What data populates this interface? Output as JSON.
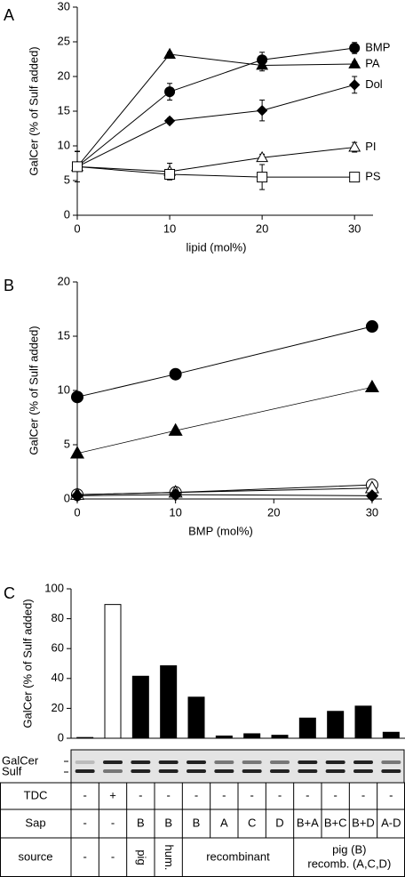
{
  "chart_data": [
    {
      "type": "line",
      "label": "A",
      "x_label": "lipid (mol%)",
      "y_label": "GalCer (% of Sulf added)",
      "x": [
        0,
        10,
        20,
        30
      ],
      "xlim": [
        0,
        32
      ],
      "xticks": [
        0,
        10,
        20,
        30
      ],
      "ylim": [
        0,
        30
      ],
      "yticks": [
        0,
        5,
        10,
        15,
        20,
        25,
        30
      ],
      "series": [
        {
          "name": "BMP",
          "marker": "circle",
          "filled": true,
          "values": [
            7,
            17.8,
            22.4,
            24.1
          ],
          "errors": [
            2.2,
            1.2,
            1.1,
            0.8
          ]
        },
        {
          "name": "PA",
          "marker": "triangle",
          "filled": true,
          "values": [
            7,
            23.2,
            21.6,
            21.8
          ],
          "errors": [
            2.2,
            0.3,
            0.8,
            0.3
          ]
        },
        {
          "name": "Dol",
          "marker": "diamond",
          "filled": true,
          "values": [
            7,
            13.6,
            15.1,
            18.8
          ],
          "errors": [
            2.2,
            0.4,
            1.5,
            1.2
          ]
        },
        {
          "name": "PI",
          "marker": "triangle",
          "filled": false,
          "values": [
            7,
            6.3,
            8.3,
            9.8
          ],
          "errors": [
            2.2,
            1.2,
            0.5,
            0.7
          ]
        },
        {
          "name": "PS",
          "marker": "square",
          "filled": false,
          "values": [
            7,
            5.9,
            5.5,
            5.5
          ],
          "errors": [
            2.2,
            0.6,
            1.8,
            0.3
          ]
        }
      ]
    },
    {
      "type": "line",
      "label": "B",
      "x_label": "BMP (mol%)",
      "y_label": "GalCer (% of Sulf added)",
      "x": [
        0,
        10,
        30
      ],
      "xlim": [
        0,
        31
      ],
      "xticks": [
        0,
        10,
        20,
        30
      ],
      "ylim": [
        0,
        20
      ],
      "yticks": [
        0,
        5,
        10,
        15,
        20
      ],
      "series": [
        {
          "marker": "circle",
          "filled": true,
          "values": [
            9.4,
            11.5,
            15.9
          ]
        },
        {
          "marker": "triangle",
          "filled": true,
          "values": [
            4.2,
            6.3,
            10.3
          ]
        },
        {
          "marker": "circle",
          "filled": false,
          "values": [
            0.4,
            0.6,
            1.3
          ]
        },
        {
          "marker": "triangle",
          "filled": false,
          "values": [
            0.4,
            0.6,
            1.0
          ]
        },
        {
          "marker": "diamond",
          "filled": true,
          "values": [
            0.3,
            0.4,
            0.3
          ]
        }
      ]
    },
    {
      "type": "bar",
      "label": "C",
      "y_label": "GalCer (% of Sulf added)",
      "ylim": [
        0,
        100
      ],
      "yticks": [
        0,
        20,
        40,
        60,
        80,
        100
      ],
      "values": [
        0.5,
        89.5,
        41.5,
        48.5,
        27.5,
        1.5,
        3,
        2,
        13.5,
        18,
        21.5,
        4
      ],
      "colors": [
        "#000000",
        "#ffffff",
        "#000000",
        "#000000",
        "#000000",
        "#000000",
        "#000000",
        "#000000",
        "#000000",
        "#000000",
        "#000000",
        "#000000"
      ]
    }
  ],
  "gel": {
    "labels": [
      "GalCer",
      "Sulf"
    ]
  },
  "table": {
    "rows": [
      {
        "label": "TDC",
        "cells": [
          "-",
          "+",
          "-",
          "-",
          "-",
          "-",
          "-",
          "-",
          "-",
          "-",
          "-",
          "-"
        ]
      },
      {
        "label": "Sap",
        "cells": [
          "-",
          "-",
          "B",
          "B",
          "B",
          "A",
          "C",
          "D",
          "B+A",
          "B+C",
          "B+D",
          "A-D"
        ]
      },
      {
        "label": "source",
        "cells": [
          "-",
          "-",
          "pig",
          "hum.",
          "recombinant",
          [
            "pig (B)",
            "recomb. (A,C,D)"
          ]
        ]
      }
    ]
  }
}
